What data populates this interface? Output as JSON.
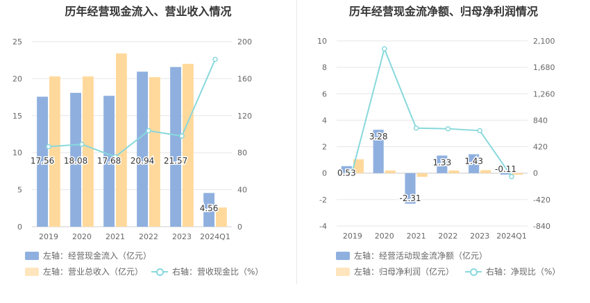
{
  "colors": {
    "blue": "#8fb0df",
    "orange": "#ffd99c",
    "line": "#88d8dc"
  },
  "chart_data": [
    {
      "type": "bar",
      "title": "历年经营现金流入、营业收入情况",
      "categories": [
        "2019",
        "2020",
        "2021",
        "2022",
        "2023",
        "2024Q1"
      ],
      "y_left": {
        "ylim": [
          0,
          25
        ],
        "ticks": [
          "0",
          "5",
          "10",
          "15",
          "20",
          "25"
        ]
      },
      "y_right": {
        "ylim": [
          0,
          200
        ],
        "ticks": [
          "0",
          "40",
          "80",
          "120",
          "160",
          "200"
        ]
      },
      "series": [
        {
          "name": "左轴：经营现金流入（亿元）",
          "type": "bar",
          "axis": "left",
          "values": [
            17.56,
            18.08,
            17.68,
            20.94,
            21.57,
            4.56
          ],
          "labels": [
            "17.56",
            "18.08",
            "17.68",
            "20.94",
            "21.57",
            "4.56"
          ]
        },
        {
          "name": "左轴：营业总收入（亿元）",
          "type": "bar",
          "axis": "left",
          "values": [
            20.3,
            20.3,
            23.4,
            20.2,
            22.0,
            2.6
          ]
        },
        {
          "name": "右轴：营收现金比（%）",
          "type": "line",
          "axis": "right",
          "values": [
            86.5,
            89,
            75.5,
            103.7,
            98,
            180.8
          ]
        }
      ]
    },
    {
      "type": "bar",
      "title": "历年经营现金流净额、归母净利润情况",
      "categories": [
        "2019",
        "2020",
        "2021",
        "2022",
        "2023",
        "2024Q1"
      ],
      "y_left": {
        "ylim": [
          -4,
          10
        ],
        "ticks": [
          "-4",
          "-2",
          "0",
          "2",
          "4",
          "6",
          "8",
          "10"
        ]
      },
      "y_right": {
        "ylim": [
          -840,
          2100
        ],
        "ticks": [
          "-840",
          "-420",
          "0",
          "420",
          "840",
          "1,260",
          "1,680",
          "2,100"
        ]
      },
      "series": [
        {
          "name": "左轴：经营活动现金流净额（亿元）",
          "type": "bar",
          "axis": "left",
          "values": [
            0.53,
            3.28,
            -2.31,
            1.33,
            1.43,
            -0.11
          ],
          "labels": [
            "0.53",
            "3.28",
            "-2.31",
            "1.33",
            "1.43",
            "-0.11"
          ]
        },
        {
          "name": "左轴：归母净利润（亿元）",
          "type": "bar",
          "axis": "left",
          "values": [
            1.05,
            0.2,
            -0.28,
            0.2,
            0.22,
            -0.12
          ]
        },
        {
          "name": "右轴：净现比（%）",
          "type": "line",
          "axis": "right",
          "values": [
            40,
            1975,
            715,
            705,
            675,
            -55
          ]
        }
      ]
    }
  ]
}
